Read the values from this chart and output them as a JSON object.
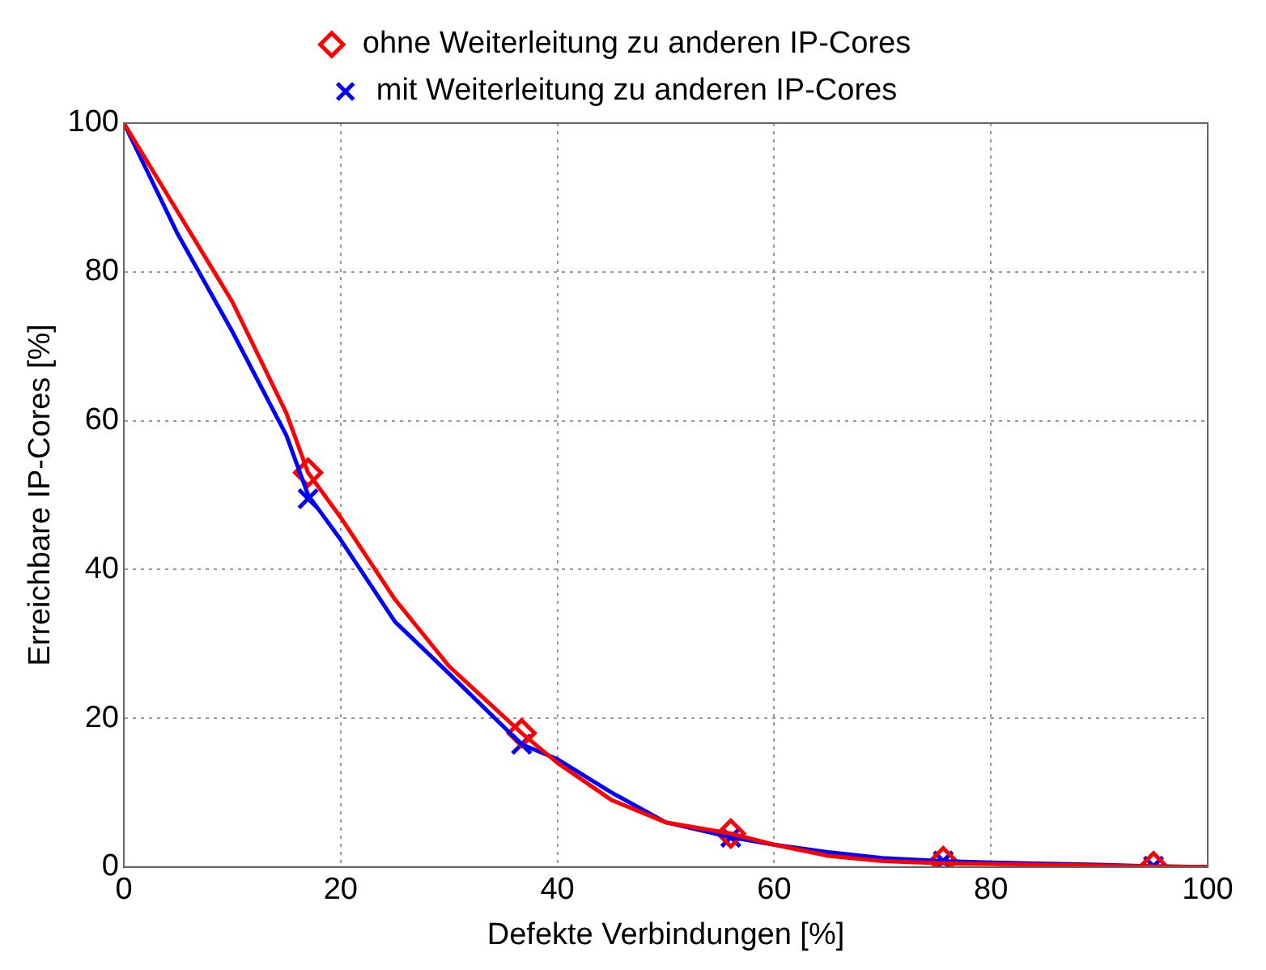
{
  "chart_data": {
    "type": "line",
    "xlabel": "Defekte Verbindungen [%]",
    "ylabel": "Erreichbare IP-Cores [%]",
    "xlim": [
      0,
      100
    ],
    "ylim": [
      0,
      100
    ],
    "xticks": [
      0,
      20,
      40,
      60,
      80,
      100
    ],
    "yticks": [
      0,
      20,
      40,
      60,
      80,
      100
    ],
    "grid": true,
    "legend": "top",
    "line_style": "solid",
    "series": [
      {
        "name": "ohne Weiterleitung zu anderen IP-Cores",
        "color": "#ff0000",
        "marker": "none",
        "x": [
          0,
          5,
          10,
          15,
          17,
          20,
          25,
          30,
          36.7,
          40,
          45,
          50,
          56,
          60,
          65,
          70,
          75.6,
          80,
          90,
          95,
          100
        ],
        "values": [
          100,
          88,
          76,
          61,
          53,
          47,
          36,
          27,
          18,
          14,
          9,
          6,
          4.5,
          3,
          1.5,
          0.8,
          0.5,
          0.4,
          0.2,
          0.1,
          0
        ]
      },
      {
        "name": "mit Weiterleitung zu anderen IP-Cores",
        "color": "#0000ff",
        "marker": "none",
        "x": [
          0,
          5,
          10,
          15,
          17,
          20,
          25,
          30,
          36.7,
          40,
          45,
          50,
          56,
          60,
          65,
          70,
          75.6,
          80,
          90,
          95,
          100
        ],
        "values": [
          100,
          85,
          72,
          58,
          50,
          44,
          33,
          26,
          16.5,
          14.5,
          10,
          6,
          4,
          3,
          2,
          1.2,
          0.8,
          0.6,
          0.3,
          0.1,
          0
        ]
      },
      {
        "type": "scatter",
        "color": "#ff0000",
        "marker": "diamond",
        "x": [
          17,
          36.7,
          56,
          75.6,
          95
        ],
        "values": [
          53,
          18,
          4.5,
          0.8,
          0.1
        ]
      },
      {
        "type": "scatter",
        "color": "#0000ff",
        "marker": "cross",
        "x": [
          17,
          36.7,
          56,
          75.6,
          95
        ],
        "values": [
          49.5,
          16.5,
          4,
          0.8,
          0.1
        ]
      }
    ]
  }
}
